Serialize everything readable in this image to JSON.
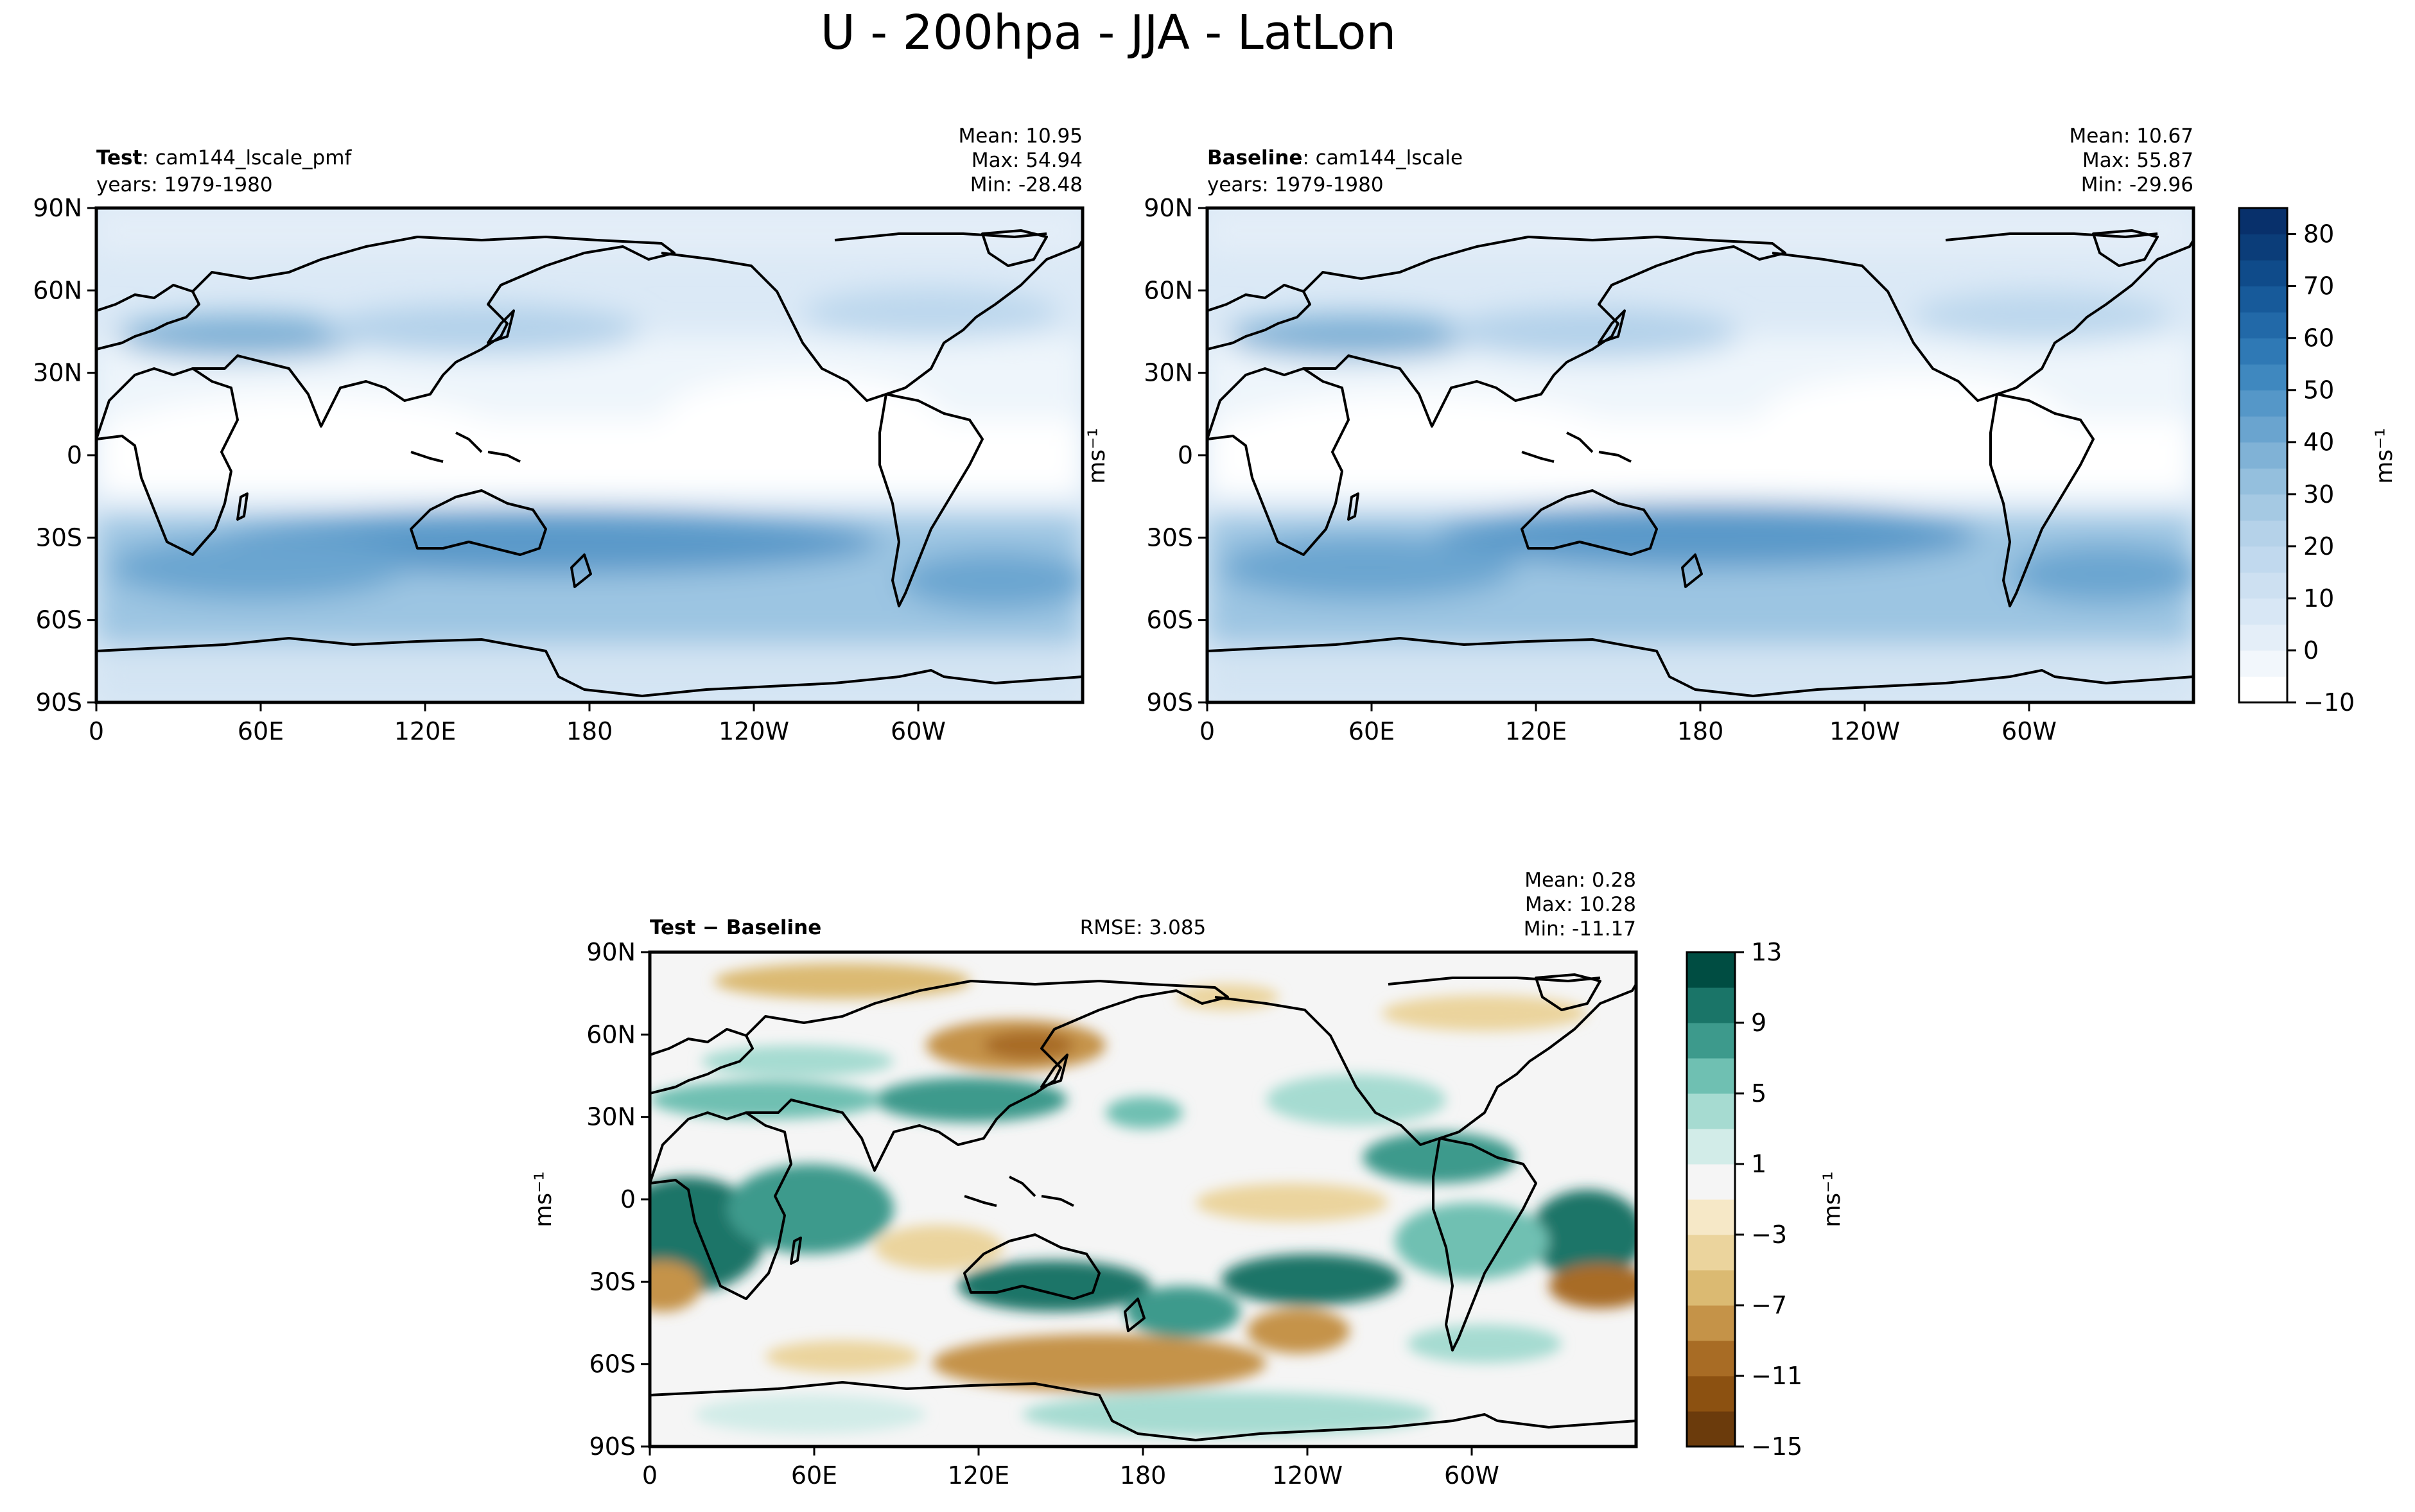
{
  "figure": {
    "title": "U - 200hpa - JJA - LatLon"
  },
  "chart_data": [
    {
      "type": "heatmap",
      "id": "test",
      "label_bold": "Test",
      "label_rest": ": cam144_lscale_pmf",
      "years": "years: 1979-1980",
      "stats": [
        "Mean: 10.95",
        "Max: 54.94",
        "Min: -28.48"
      ],
      "yticks": [
        "90N",
        "60N",
        "30N",
        "0",
        "30S",
        "60S",
        "90S"
      ],
      "xticks": [
        "0",
        "60E",
        "120E",
        "180",
        "120W",
        "60W"
      ],
      "xlim": [
        0,
        360
      ],
      "ylim": [
        -90,
        90
      ],
      "ylabel": ""
    },
    {
      "type": "heatmap",
      "id": "baseline",
      "label_bold": "Baseline",
      "label_rest": ": cam144_lscale",
      "years": "years: 1979-1980",
      "stats": [
        "Mean: 10.67",
        "Max: 55.87",
        "Min: -29.96"
      ],
      "yticks": [
        "90N",
        "60N",
        "30N",
        "0",
        "30S",
        "60S",
        "90S"
      ],
      "xticks": [
        "0",
        "60E",
        "120E",
        "180",
        "120W",
        "60W"
      ],
      "xlim": [
        0,
        360
      ],
      "ylim": [
        -90,
        90
      ],
      "ylabel": "ms⁻¹"
    },
    {
      "type": "heatmap",
      "id": "diff",
      "label_bold": "Test − Baseline",
      "label_rest": "",
      "rmse": "RMSE: 3.085",
      "stats": [
        "Mean:  0.28",
        "Max: 10.28",
        "Min: -11.17"
      ],
      "yticks": [
        "90N",
        "60N",
        "30N",
        "0",
        "30S",
        "60S",
        "90S"
      ],
      "xticks": [
        "0",
        "60E",
        "120E",
        "180",
        "120W",
        "60W"
      ],
      "xlim": [
        0,
        360
      ],
      "ylim": [
        -90,
        90
      ],
      "ylabel": "ms⁻¹"
    }
  ],
  "colorbars": {
    "main": {
      "ticks": [
        "80",
        "70",
        "60",
        "50",
        "40",
        "30",
        "20",
        "10",
        "0",
        "−10"
      ],
      "range": [
        -10,
        85
      ],
      "label": "ms⁻¹",
      "colors": [
        "#ffffff",
        "#f2f7fc",
        "#e4eef8",
        "#d8e7f5",
        "#cde0f1",
        "#c1d9ee",
        "#b5d2e9",
        "#a5c9e3",
        "#94bfdd",
        "#80b2d6",
        "#6aa4cf",
        "#5597c8",
        "#3f88bf",
        "#2f79b5",
        "#2269a8",
        "#175a9a",
        "#0f4b8a",
        "#0b3d79",
        "#08306b"
      ]
    },
    "diff": {
      "ticks": [
        "13",
        "9",
        "5",
        "1",
        "−3",
        "−7",
        "−11",
        "−15"
      ],
      "range": [
        -15,
        13
      ],
      "label": "ms⁻¹",
      "colors": [
        "#6b3b0c",
        "#8c5111",
        "#a86c25",
        "#c59348",
        "#dbba72",
        "#ebd49d",
        "#f6e8c7",
        "#f5f5f5",
        "#d2ece8",
        "#a6dbd1",
        "#6fc0b2",
        "#3d9a8c",
        "#1a7568",
        "#004d42"
      ]
    }
  }
}
